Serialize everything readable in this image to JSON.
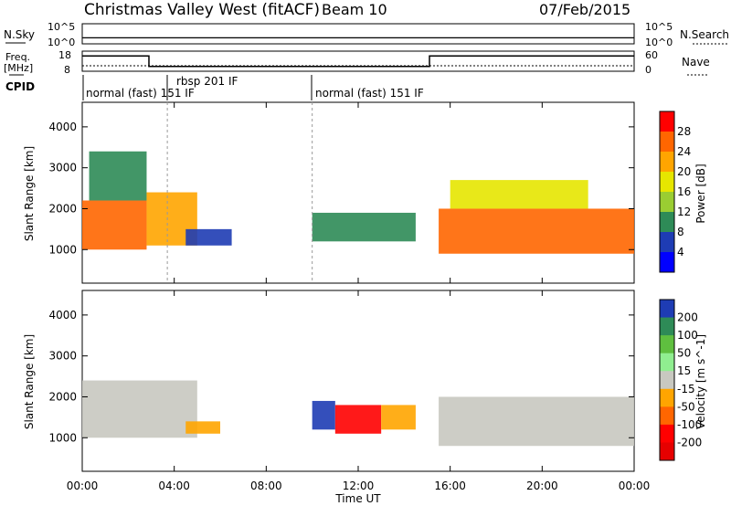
{
  "header": {
    "station": "Christmas Valley West (fitACF)",
    "beam": "Beam 10",
    "date": "07/Feb/2015"
  },
  "chart_data": [
    {
      "type": "line",
      "panel": "noise",
      "left_label": "N.Sky",
      "right_label": "N.Search",
      "left_ticks": [
        "10^5",
        "10^0"
      ],
      "right_ticks": [
        "10^5",
        "10^0"
      ],
      "level": 0.3
    },
    {
      "type": "line",
      "panel": "frequency",
      "left_label_lines": [
        "Freq.",
        "[MHz]"
      ],
      "right_label": "Nave",
      "left_ticks": [
        "18",
        "8"
      ],
      "right_ticks": [
        "60",
        "0"
      ],
      "ylim_left": [
        8,
        18
      ],
      "freq_steps": [
        {
          "t0": 0,
          "t1": 2.9,
          "f": 15.6
        },
        {
          "t0": 2.9,
          "t1": 15.1,
          "f": 10.4
        },
        {
          "t0": 15.1,
          "t1": 24,
          "f": 15.6
        }
      ]
    },
    {
      "type": "table",
      "panel": "cpid",
      "label": "CPID",
      "segments": [
        {
          "t": 0.0,
          "text": "normal (fast) 151 IF"
        },
        {
          "t": 3.7,
          "text": "rbsp 201 IF"
        },
        {
          "t": 10.0,
          "text": "normal (fast) 151 IF"
        }
      ],
      "markers": [
        0.0,
        3.7,
        10.0
      ]
    },
    {
      "type": "heatmap",
      "panel": "power",
      "ylabel": "Slant Range [km]",
      "yticks": [
        1000,
        2000,
        3000,
        4000
      ],
      "ylim": [
        180,
        4600
      ],
      "colorbar_label": "Power [dB]",
      "colorbar_ticks": [
        "28",
        "24",
        "20",
        "16",
        "12",
        "8",
        "4"
      ],
      "colorbar_colors": [
        "#ff0000",
        "#ff6600",
        "#ffa500",
        "#e6e600",
        "#9acd32",
        "#2e8b57",
        "#1e3cb4",
        "#0000ff"
      ],
      "regions": [
        {
          "t0": 0.0,
          "t1": 2.8,
          "r0": 1000,
          "r1": 2200,
          "level": 26
        },
        {
          "t0": 0.3,
          "t1": 2.8,
          "r0": 2200,
          "r1": 3400,
          "level": 12
        },
        {
          "t0": 2.8,
          "t1": 5.0,
          "r0": 1100,
          "r1": 2400,
          "level": 22
        },
        {
          "t0": 4.5,
          "t1": 6.5,
          "r0": 1100,
          "r1": 1500,
          "level": 5
        },
        {
          "t0": 10.0,
          "t1": 14.5,
          "r0": 1200,
          "r1": 1900,
          "level": 12
        },
        {
          "t0": 15.5,
          "t1": 24.0,
          "r0": 900,
          "r1": 2000,
          "level": 26
        },
        {
          "t0": 16.0,
          "t1": 22.0,
          "r0": 2000,
          "r1": 2700,
          "level": 18
        }
      ]
    },
    {
      "type": "heatmap",
      "panel": "velocity",
      "ylabel": "Slant Range [km]",
      "yticks": [
        1000,
        2000,
        3000,
        4000
      ],
      "ylim": [
        180,
        4600
      ],
      "colorbar_label": "Velocity [m s^-1]",
      "colorbar_ticks": [
        "200",
        "100",
        "50",
        "15",
        "-15",
        "-50",
        "-100",
        "-200"
      ],
      "colorbar_colors": [
        "#1e3cb4",
        "#2e8b57",
        "#5fbf3f",
        "#90ee90",
        "#c8c8c0",
        "#ffa500",
        "#ff6600",
        "#ff0000",
        "#e60000"
      ],
      "regions": [
        {
          "t0": 0.0,
          "t1": 5.0,
          "r0": 1000,
          "r1": 2400,
          "v": 0
        },
        {
          "t0": 4.5,
          "t1": 6.0,
          "r0": 1100,
          "r1": 1400,
          "v": -60
        },
        {
          "t0": 10.0,
          "t1": 11.0,
          "r0": 1200,
          "r1": 1900,
          "v": 200
        },
        {
          "t0": 11.0,
          "t1": 13.0,
          "r0": 1100,
          "r1": 1800,
          "v": -200
        },
        {
          "t0": 13.0,
          "t1": 14.5,
          "r0": 1200,
          "r1": 1800,
          "v": -60
        },
        {
          "t0": 15.5,
          "t1": 24.0,
          "r0": 800,
          "r1": 2000,
          "v": 0
        }
      ]
    }
  ],
  "time_axis": {
    "label": "Time UT",
    "ticks": [
      "00:00",
      "04:00",
      "08:00",
      "12:00",
      "16:00",
      "20:00",
      "00:00"
    ]
  }
}
